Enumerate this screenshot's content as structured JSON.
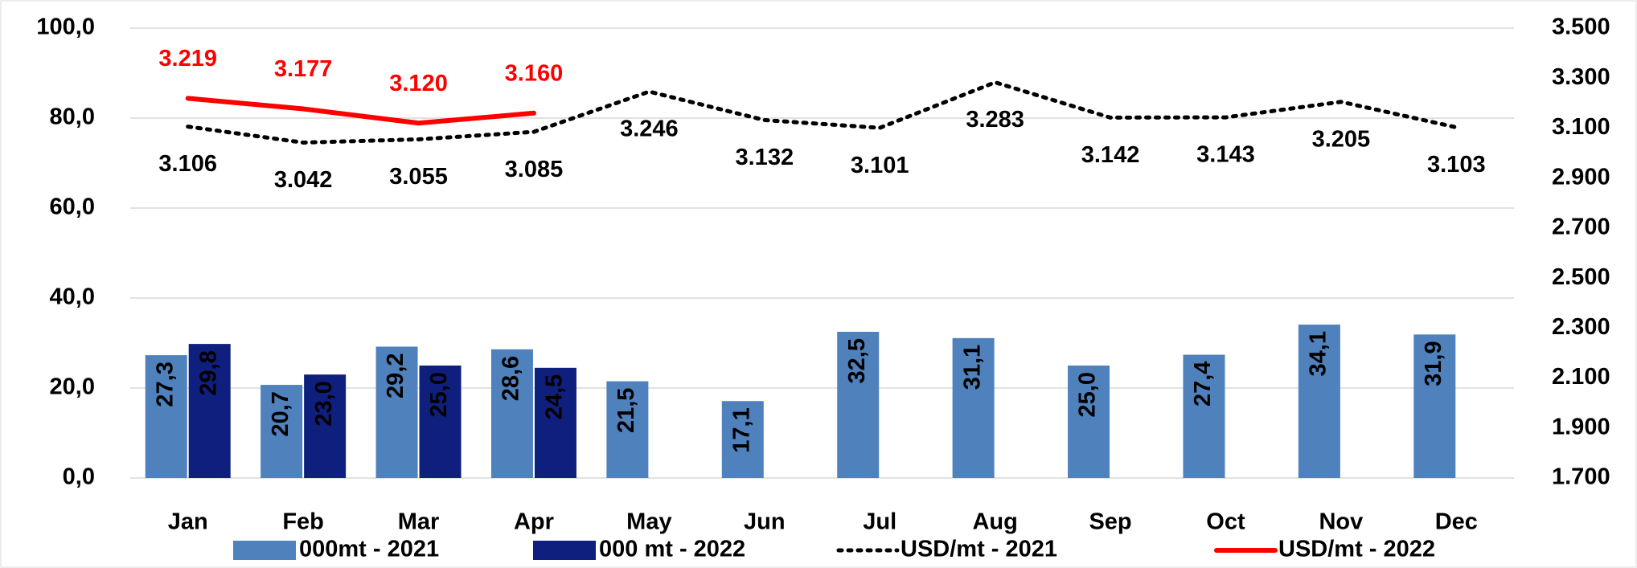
{
  "chart_data": {
    "type": "bar",
    "categories": [
      "Jan",
      "Feb",
      "Mar",
      "Apr",
      "May",
      "Jun",
      "Jul",
      "Aug",
      "Sep",
      "Oct",
      "Nov",
      "Dec"
    ],
    "series": [
      {
        "name": "000mt - 2021",
        "type": "bar",
        "color": "#4f81bd",
        "values": [
          27.3,
          20.7,
          29.2,
          28.6,
          21.5,
          17.1,
          32.5,
          31.1,
          25.0,
          27.4,
          34.1,
          31.9
        ],
        "value_labels": [
          "27,3",
          "20,7",
          "29,2",
          "28,6",
          "21,5",
          "17,1",
          "32,5",
          "31,1",
          "25,0",
          "27,4",
          "34,1",
          "31,9"
        ]
      },
      {
        "name": "000 mt - 2022",
        "type": "bar",
        "color": "#0f1f7d",
        "values": [
          29.8,
          23.0,
          25.0,
          24.5,
          null,
          null,
          null,
          null,
          null,
          null,
          null,
          null
        ],
        "value_labels": [
          "29,8",
          "23,0",
          "25,0",
          "24,5",
          null,
          null,
          null,
          null,
          null,
          null,
          null,
          null
        ]
      },
      {
        "name": "USD/mt - 2021",
        "type": "line",
        "axis": "y2",
        "color": "#000000",
        "line_style": "dotted",
        "label_position": "below",
        "values": [
          3106,
          3042,
          3055,
          3085,
          3246,
          3132,
          3101,
          3283,
          3142,
          3143,
          3205,
          3103
        ],
        "value_labels": [
          "3.106",
          "3.042",
          "3.055",
          "3.085",
          "3.246",
          "3.132",
          "3.101",
          "3.283",
          "3.142",
          "3.143",
          "3.205",
          "3.103"
        ]
      },
      {
        "name": "USD/mt - 2022",
        "type": "line",
        "axis": "y2",
        "color": "#ff0000",
        "line_style": "solid",
        "label_position": "above",
        "values": [
          3219,
          3177,
          3120,
          3160,
          null,
          null,
          null,
          null,
          null,
          null,
          null,
          null
        ],
        "value_labels": [
          "3.219",
          "3.177",
          "3.120",
          "3.160",
          null,
          null,
          null,
          null,
          null,
          null,
          null,
          null
        ]
      }
    ],
    "ylim": [
      0,
      100
    ],
    "yticks": [
      {
        "value": 0,
        "label": "0,0"
      },
      {
        "value": 20,
        "label": "20,0"
      },
      {
        "value": 40,
        "label": "40,0"
      },
      {
        "value": 60,
        "label": "60,0"
      },
      {
        "value": 80,
        "label": "80,0"
      },
      {
        "value": 100,
        "label": "100,0"
      }
    ],
    "y2lim": [
      1700,
      3500
    ],
    "y2ticks": [
      {
        "value": 1700,
        "label": "1.700"
      },
      {
        "value": 1900,
        "label": "1.900"
      },
      {
        "value": 2100,
        "label": "2.100"
      },
      {
        "value": 2300,
        "label": "2.300"
      },
      {
        "value": 2500,
        "label": "2.500"
      },
      {
        "value": 2700,
        "label": "2.700"
      },
      {
        "value": 2900,
        "label": "2.900"
      },
      {
        "value": 3100,
        "label": "3.100"
      },
      {
        "value": 3300,
        "label": "3.300"
      },
      {
        "value": 3500,
        "label": "3.500"
      }
    ],
    "grid": true,
    "legend": "bottom"
  }
}
